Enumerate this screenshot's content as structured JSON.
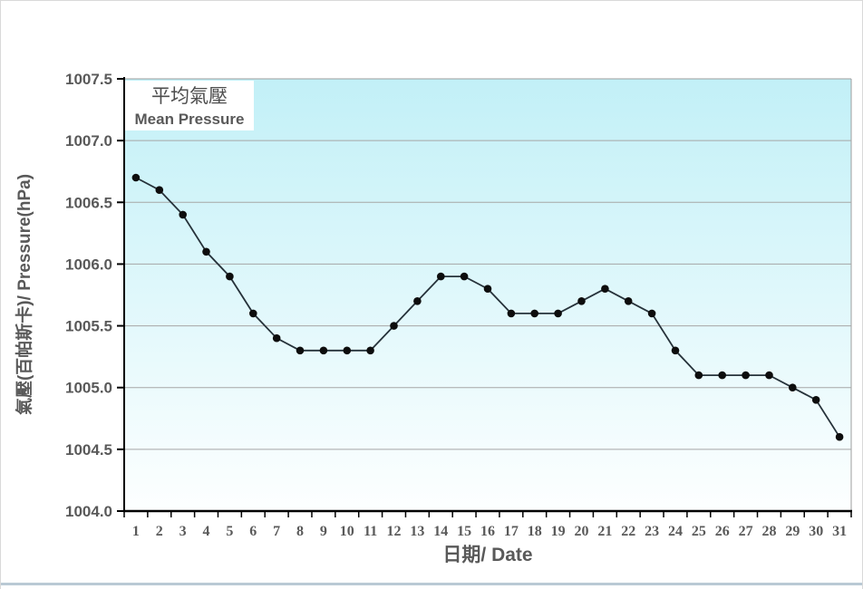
{
  "chart_data": {
    "type": "line",
    "legend": {
      "zh": "平均氣壓",
      "en": "Mean Pressure",
      "position": "top-left"
    },
    "xlabel": "日期/ Date",
    "ylabel": "氣壓(百帕斯卡)/ Pressure(hPa)",
    "x": [
      1,
      2,
      3,
      4,
      5,
      6,
      7,
      8,
      9,
      10,
      11,
      12,
      13,
      14,
      15,
      16,
      17,
      18,
      19,
      20,
      21,
      22,
      23,
      24,
      25,
      26,
      27,
      28,
      29,
      30,
      31
    ],
    "values": [
      1006.7,
      1006.6,
      1006.4,
      1006.1,
      1005.9,
      1005.6,
      1005.4,
      1005.3,
      1005.3,
      1005.3,
      1005.3,
      1005.5,
      1005.7,
      1005.9,
      1005.9,
      1005.8,
      1005.6,
      1005.6,
      1005.6,
      1005.7,
      1005.8,
      1005.7,
      1005.6,
      1005.3,
      1005.1,
      1005.1,
      1005.1,
      1005.1,
      1005.0,
      1004.9,
      1004.6
    ],
    "ylim": [
      1004.0,
      1007.5
    ],
    "ytick_step": 0.5,
    "grid": true,
    "colors": {
      "line": "#26323a",
      "marker": "#0d0d0d",
      "grid": "#a6a6a6",
      "axis": "#000000",
      "label_text": "#595959",
      "plot_bg_top": "#c2f0f7",
      "plot_bg_bottom": "#fdffff",
      "plot_border": "#9e9e9e",
      "legend_bg": "#ffffff",
      "page_bottom_band": "#b9c9d4"
    }
  }
}
